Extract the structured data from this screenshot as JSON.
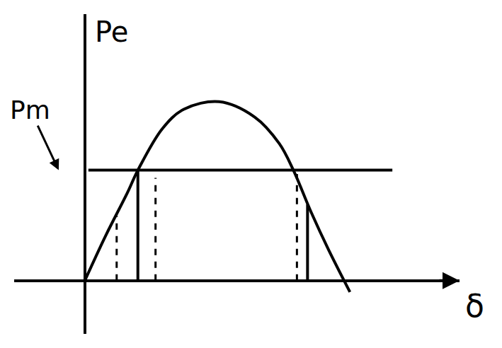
{
  "chart_data": {
    "type": "line",
    "x_label": "δ",
    "y_label": "Pe",
    "annotations": [
      {
        "text": "Pm",
        "y": 145
      }
    ],
    "xlim": [
      -100,
      530
    ],
    "ylim": [
      -70,
      350
    ],
    "xticks": [],
    "yticks": [],
    "tick_labels": false,
    "grid": false,
    "series": [
      {
        "x": [
          0,
          30,
          60,
          75,
          110,
          140,
          190,
          240,
          275,
          295,
          320,
          345,
          375
        ],
        "values": [
          0,
          60,
          115,
          145,
          200,
          225,
          235,
          215,
          180,
          145,
          90,
          40,
          -15
        ],
        "color": "#000000",
        "line_style": "solid"
      },
      {
        "x": [
          5,
          435
        ],
        "values": [
          145,
          145
        ],
        "color": "#000000",
        "line_style": "solid"
      },
      {
        "x": [
          75,
          75
        ],
        "values": [
          0,
          145
        ],
        "color": "#000000",
        "line_style": "solid"
      },
      {
        "x": [
          315,
          315
        ],
        "values": [
          0,
          100
        ],
        "color": "#000000",
        "line_style": "solid"
      },
      {
        "x": [
          45,
          45
        ],
        "values": [
          0,
          85
        ],
        "color": "#000000",
        "line_style": "dash"
      },
      {
        "x": [
          100,
          100
        ],
        "values": [
          0,
          135
        ],
        "color": "#000000",
        "line_style": "dash"
      },
      {
        "x": [
          300,
          300
        ],
        "values": [
          0,
          140
        ],
        "color": "#000000",
        "line_style": "dash"
      }
    ]
  }
}
